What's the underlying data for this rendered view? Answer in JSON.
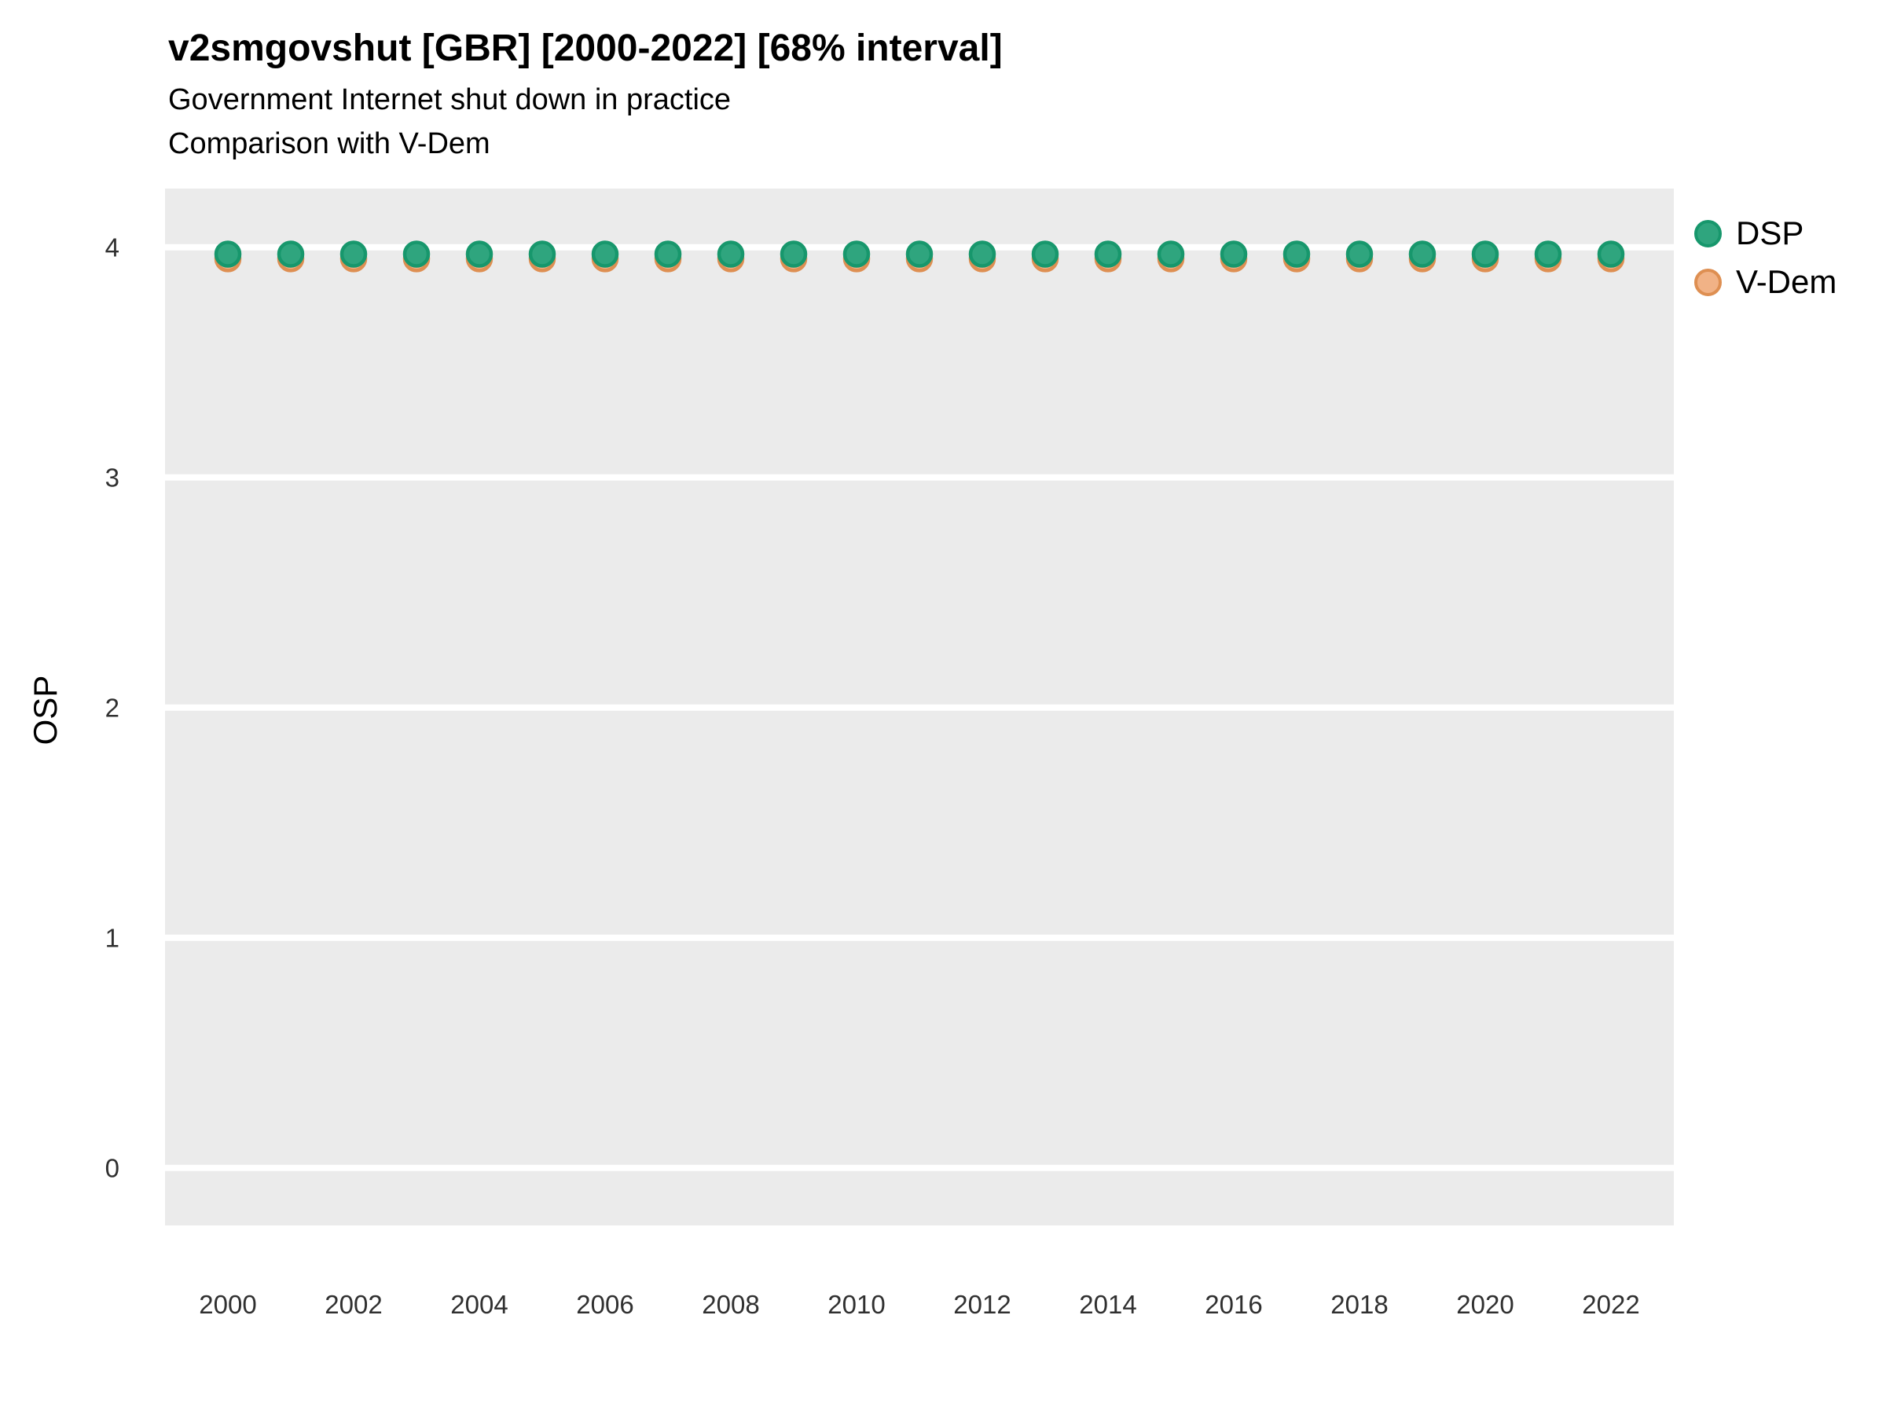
{
  "header": {
    "title": "v2smgovshut [GBR] [2000-2022] [68% interval]",
    "subtitle": "Government Internet shut down in practice",
    "subtitle2": "Comparison with V-Dem"
  },
  "y_axis": {
    "label": "OSP"
  },
  "legend": {
    "items": [
      {
        "label": "DSP"
      },
      {
        "label": "V-Dem"
      }
    ]
  },
  "chart_data": {
    "type": "scatter",
    "title": "v2smgovshut [GBR] [2000-2022] [68% interval]",
    "subtitle": "Government Internet shut down in practice",
    "comparison_note": "Comparison with V-Dem",
    "xlabel": "",
    "ylabel": "OSP",
    "x": [
      2000,
      2001,
      2002,
      2003,
      2004,
      2005,
      2006,
      2007,
      2008,
      2009,
      2010,
      2011,
      2012,
      2013,
      2014,
      2015,
      2016,
      2017,
      2018,
      2019,
      2020,
      2021,
      2022
    ],
    "series": [
      {
        "name": "DSP",
        "fill": "#2FA57E",
        "stroke": "#17976C",
        "values": [
          3.97,
          3.97,
          3.97,
          3.97,
          3.97,
          3.97,
          3.97,
          3.97,
          3.97,
          3.97,
          3.97,
          3.97,
          3.97,
          3.97,
          3.97,
          3.97,
          3.97,
          3.97,
          3.97,
          3.97,
          3.97,
          3.97,
          3.97
        ]
      },
      {
        "name": "V-Dem",
        "fill": "#F1B286",
        "stroke": "#DE8F52",
        "values": [
          3.95,
          3.95,
          3.95,
          3.95,
          3.95,
          3.95,
          3.95,
          3.95,
          3.95,
          3.95,
          3.95,
          3.95,
          3.95,
          3.95,
          3.95,
          3.95,
          3.95,
          3.95,
          3.95,
          3.95,
          3.95,
          3.95,
          3.95
        ]
      }
    ],
    "x_ticks": [
      2000,
      2002,
      2004,
      2006,
      2008,
      2010,
      2012,
      2014,
      2016,
      2018,
      2020,
      2022
    ],
    "y_ticks": [
      0,
      1,
      2,
      3,
      4
    ],
    "xlim": [
      1999,
      23
    ],
    "x_step_px_note": "x axis spans 1999-2023",
    "xlim_max": 2023,
    "ylim": [
      -0.25,
      4.255
    ],
    "grid": "horizontal major gridlines only",
    "legend_position": "right",
    "panel_bg": "#EBEBEB",
    "grid_color": "#FFFFFF",
    "tick_label_color": "#303030"
  }
}
